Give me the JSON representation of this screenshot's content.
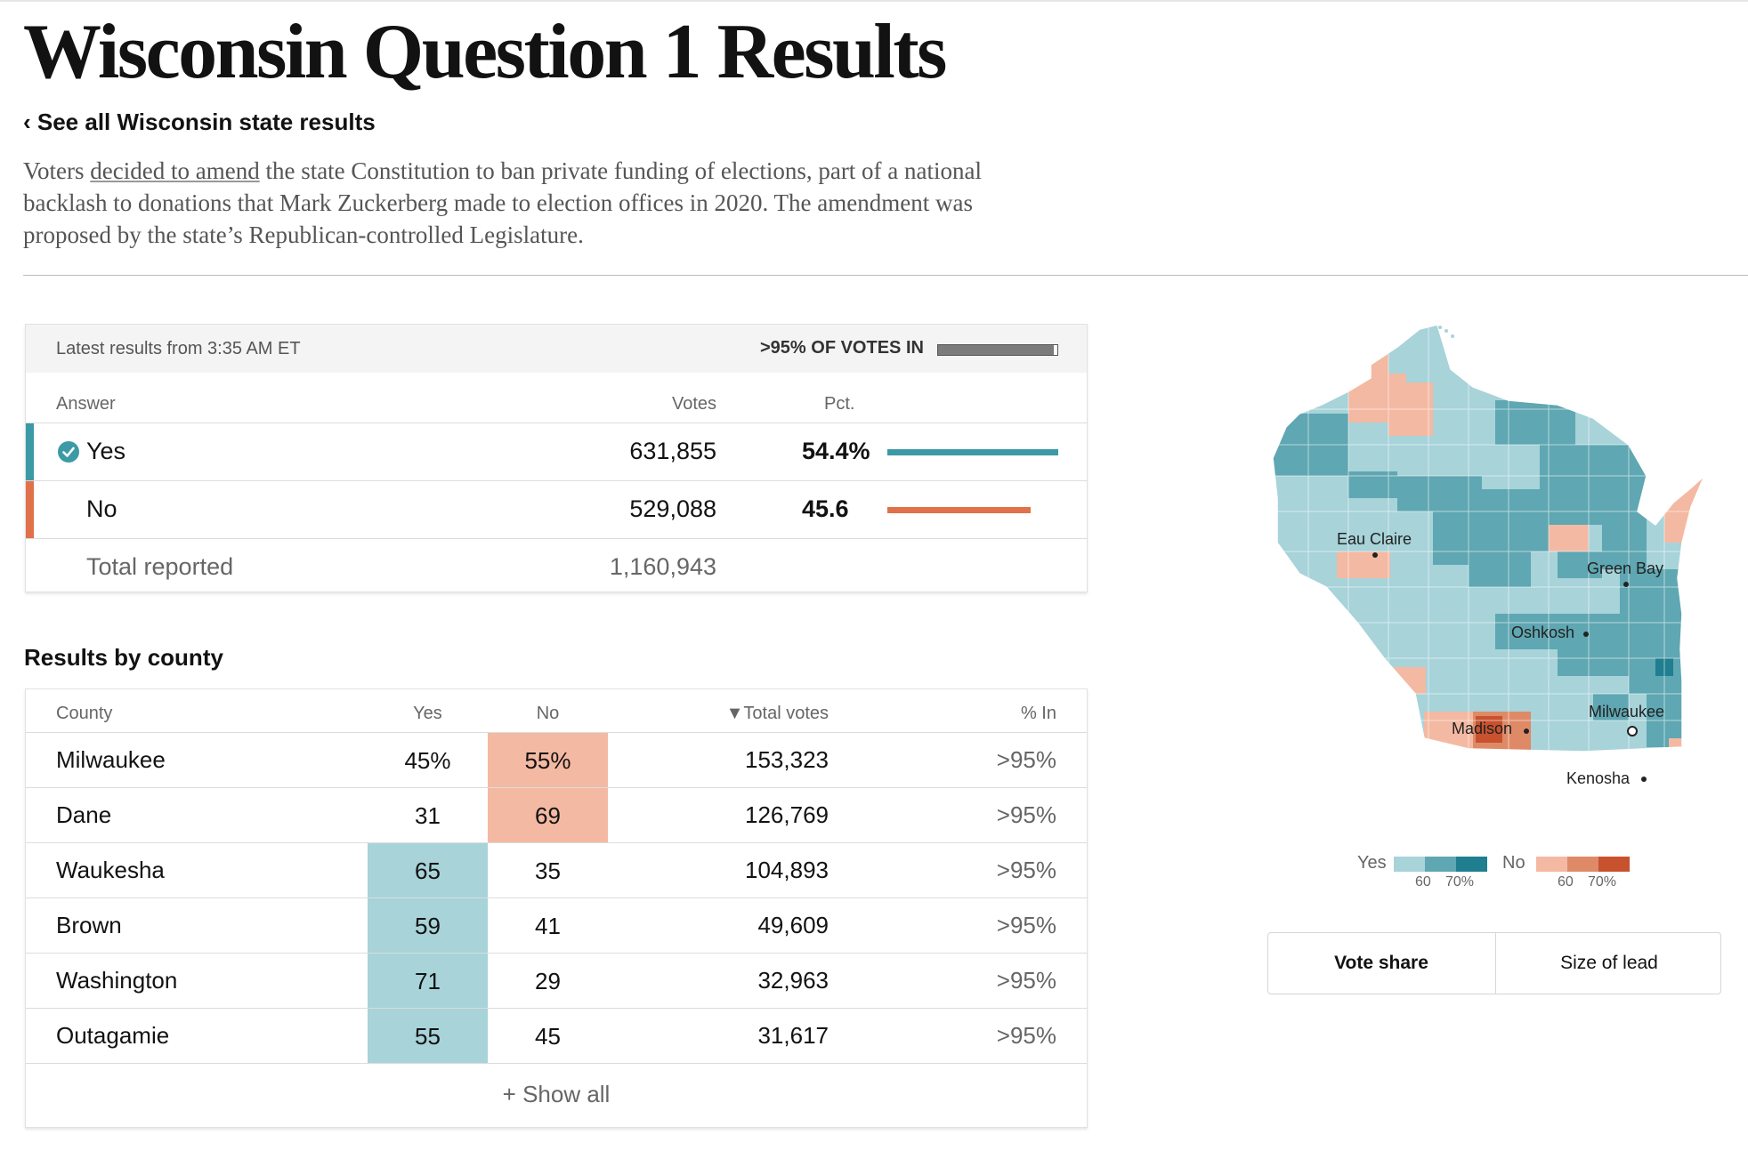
{
  "header": {
    "title": "Wisconsin Question 1 Results",
    "back_link": "‹ See all Wisconsin state results",
    "summary": {
      "before": "Voters ",
      "link": "decided to amend",
      "after": " the state Constitution to ban private funding of elections, part of a national backlash to donations that Mark Zuckerberg made to election offices in 2020. The amendment was proposed by the state’s Republican-controlled Legislature."
    }
  },
  "results": {
    "latest": "Latest results from 3:35 AM ET",
    "votes_in_label": ">95% OF VOTES IN",
    "votes_in_fraction": 0.97,
    "col_answer": "Answer",
    "col_votes": "Votes",
    "col_pct": "Pct.",
    "rows": [
      {
        "answer": "Yes",
        "votes": "631,855",
        "pct": "54.4%",
        "pct_value": 54.4,
        "color": "#3b9aa5",
        "winner": true
      },
      {
        "answer": "No",
        "votes": "529,088",
        "pct": "45.6",
        "pct_value": 45.6,
        "color": "#e0714a",
        "winner": false
      }
    ],
    "total_label": "Total reported",
    "total_value": "1,160,943"
  },
  "county": {
    "heading": "Results by county",
    "col_county": "County",
    "col_yes": "Yes",
    "col_no": "No",
    "col_total": "▼Total votes",
    "col_in": "% In",
    "rows": [
      {
        "name": "Milwaukee",
        "yes": "45%",
        "no": "55%",
        "total": "153,323",
        "pct_in": ">95%",
        "winner": "no"
      },
      {
        "name": "Dane",
        "yes": "31",
        "no": "69",
        "total": "126,769",
        "pct_in": ">95%",
        "winner": "no"
      },
      {
        "name": "Waukesha",
        "yes": "65",
        "no": "35",
        "total": "104,893",
        "pct_in": ">95%",
        "winner": "yes"
      },
      {
        "name": "Brown",
        "yes": "59",
        "no": "41",
        "total": "49,609",
        "pct_in": ">95%",
        "winner": "yes"
      },
      {
        "name": "Washington",
        "yes": "71",
        "no": "29",
        "total": "32,963",
        "pct_in": ">95%",
        "winner": "yes"
      },
      {
        "name": "Outagamie",
        "yes": "55",
        "no": "45",
        "total": "31,617",
        "pct_in": ">95%",
        "winner": "yes"
      }
    ],
    "show_all": "+ Show all",
    "yes_cell_color": "#a7d3d9",
    "no_cell_color": "#f4b9a2"
  },
  "map": {
    "cities": [
      "Eau Claire",
      "Green Bay",
      "Oshkosh",
      "Milwaukee",
      "Madison",
      "Kenosha"
    ],
    "colors": {
      "yes_light": "#a7d3d9",
      "yes_mid": "#5fa7b2",
      "yes_dark": "#1f7e8f",
      "no_light": "#f4b9a2",
      "no_mid": "#df8a67",
      "no_dark": "#c8522e"
    }
  },
  "legend": {
    "yes_label": "Yes",
    "no_label": "No",
    "yes_ticks": [
      "60",
      "70%"
    ],
    "no_ticks": [
      "60",
      "70%"
    ]
  },
  "toggle": {
    "vote_share": "Vote share",
    "size_of_lead": "Size of lead",
    "selected": "vote_share"
  }
}
